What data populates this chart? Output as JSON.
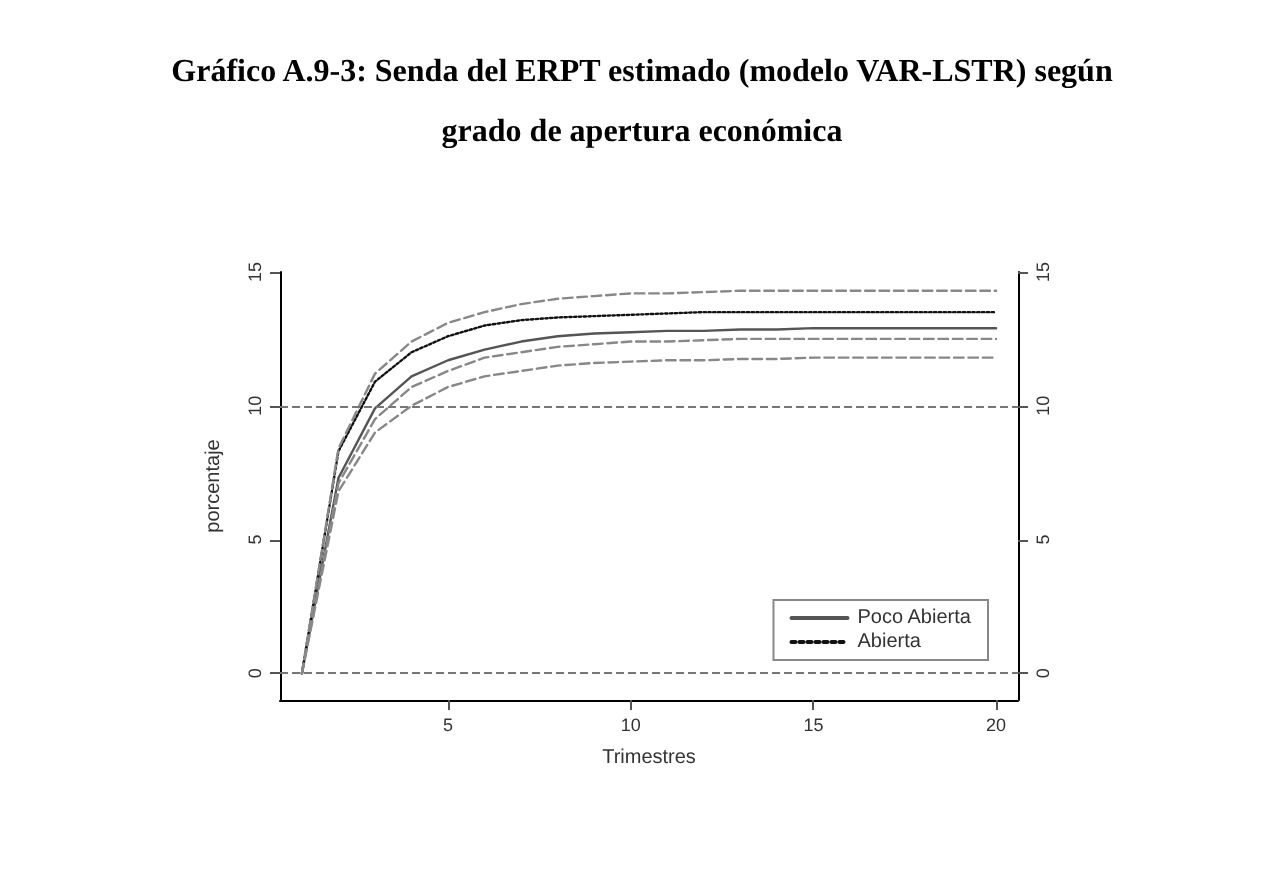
{
  "chart_data": {
    "type": "line",
    "title": "Gráfico A.9-3: Senda del ERPT estimado (modelo VAR-LSTR) según\ngrado de apertura económica",
    "xlabel": "Trimestres",
    "ylabel": "porcentaje",
    "x": [
      1,
      2,
      3,
      4,
      5,
      6,
      7,
      8,
      9,
      10,
      11,
      12,
      13,
      14,
      15,
      16,
      17,
      18,
      19,
      20
    ],
    "series": [
      {
        "name": "Poco Abierta",
        "color": "#555555",
        "line_style": "solid",
        "values": [
          0,
          7.3,
          9.9,
          11.1,
          11.7,
          12.1,
          12.4,
          12.6,
          12.7,
          12.75,
          12.8,
          12.8,
          12.85,
          12.85,
          12.9,
          12.9,
          12.9,
          12.9,
          12.9,
          12.9
        ]
      },
      {
        "name": "Abierta",
        "color": "#111111",
        "line_style": "dotted",
        "values": [
          0,
          8.3,
          10.9,
          12.0,
          12.6,
          13.0,
          13.2,
          13.3,
          13.35,
          13.4,
          13.45,
          13.5,
          13.5,
          13.5,
          13.5,
          13.5,
          13.5,
          13.5,
          13.5,
          13.5
        ]
      },
      {
        "color": "#888888",
        "line_style": "dashed",
        "values": [
          0,
          8.4,
          11.2,
          12.4,
          13.1,
          13.5,
          13.8,
          14.0,
          14.1,
          14.2,
          14.2,
          14.25,
          14.3,
          14.3,
          14.3,
          14.3,
          14.3,
          14.3,
          14.3,
          14.3
        ]
      },
      {
        "color": "#888888",
        "line_style": "dashed",
        "values": [
          0,
          7.1,
          9.5,
          10.7,
          11.3,
          11.8,
          12.0,
          12.2,
          12.3,
          12.4,
          12.4,
          12.45,
          12.5,
          12.5,
          12.5,
          12.5,
          12.5,
          12.5,
          12.5,
          12.5
        ]
      },
      {
        "color": "#888888",
        "line_style": "dashed",
        "values": [
          0,
          6.8,
          9.0,
          10.0,
          10.7,
          11.1,
          11.3,
          11.5,
          11.6,
          11.65,
          11.7,
          11.7,
          11.75,
          11.75,
          11.8,
          11.8,
          11.8,
          11.8,
          11.8,
          11.8
        ]
      }
    ],
    "xlim": [
      0.4,
      20.6
    ],
    "xticks": [
      5,
      10,
      15,
      20
    ],
    "ylim": [
      -1,
      15
    ],
    "yticks": [
      0,
      5,
      10,
      15
    ],
    "y2lim": [
      -1,
      15
    ],
    "y2ticks": [
      0,
      5,
      10,
      15
    ],
    "ref_lines": [
      {
        "axis": "y",
        "value": 0,
        "color": "#777777",
        "line_style": "dashed"
      },
      {
        "axis": "y",
        "value": 10,
        "color": "#777777",
        "line_style": "dashed"
      }
    ],
    "legend": "bottom right",
    "grid": false,
    "marker": "none"
  }
}
